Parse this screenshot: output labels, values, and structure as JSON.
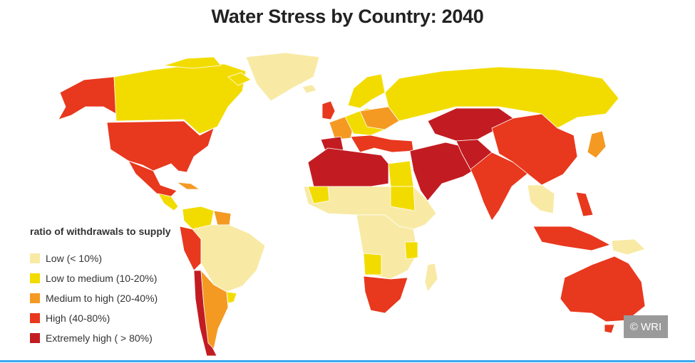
{
  "title": "Water Stress by Country: 2040",
  "legend": {
    "title": "ratio of withdrawals to supply",
    "items": [
      {
        "label": "Low (< 10%)",
        "color": "#f8eaa5"
      },
      {
        "label": "Low to medium (10-20%)",
        "color": "#f2dc00"
      },
      {
        "label": "Medium to high  (20-40%)",
        "color": "#f49a23"
      },
      {
        "label": "High (40-80%)",
        "color": "#e8381e"
      },
      {
        "label": "Extremely high ( > 80%)",
        "color": "#c21c22"
      }
    ]
  },
  "credit": "© WRI",
  "colors": {
    "low": "#f8eaa5",
    "low_medium": "#f2dc00",
    "medium_high": "#f49a23",
    "high": "#e8381e",
    "extreme": "#c21c22",
    "accent_line": "#3aa8ee"
  }
}
